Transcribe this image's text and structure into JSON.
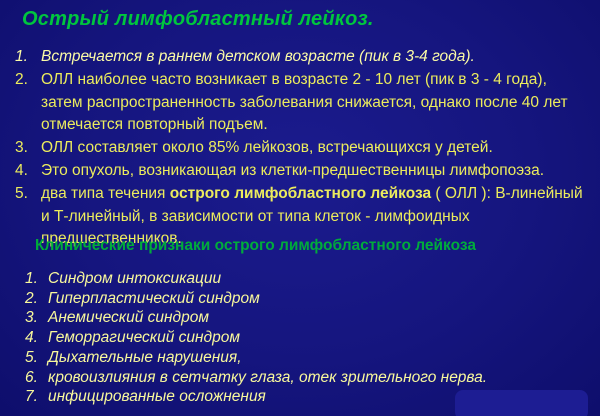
{
  "slide": {
    "title": "Острый лимфобластный лейкоз.",
    "facts": [
      {
        "num": "1.",
        "text": "Встречается в раннем детском возрасте (пик в 3-4 года)."
      },
      {
        "num": "2.",
        "text": "ОЛЛ наиболее часто возникает в возрасте 2 - 10 лет (пик в 3 - 4 года), затем распространенность заболевания снижается, однако после 40 лет отмечается повторный подъем."
      },
      {
        "num": "3.",
        "text": "ОЛЛ составляет около 85% лейкозов, встречающихся у детей."
      },
      {
        "num": "4.",
        "text": "Это опухоль, возникающая из клетки-предшественницы лимфопоэза."
      },
      {
        "num": "5.",
        "pre": "два типа течения ",
        "bold": "острого лимфобластного лейкоза",
        "post": " ( ОЛЛ ): В-линейный и Т-линейный, в зависимости от типа клеток - лимфоидных предшественников."
      }
    ],
    "subtitle": "Клинические признаки острого лимфобластного лейкоза",
    "signs": [
      {
        "num": "1.",
        "text": "Синдром интоксикации"
      },
      {
        "num": "2.",
        "text": "Гиперпластический синдром"
      },
      {
        "num": "3.",
        "text": "Анемический синдром"
      },
      {
        "num": "4.",
        "text": "Геморрагический синдром"
      },
      {
        "num": "5.",
        "text": "Дыхательные нарушения,"
      },
      {
        "num": "6.",
        "text": "кровоизлияния в сетчатку глаза, отек зрительного нерва."
      },
      {
        "num": "7.",
        "text": "инфицированные осложнения"
      }
    ],
    "colors": {
      "background": "#15157e",
      "title_green": "#00c63e",
      "subtitle_green": "#00ac3b",
      "fact_yellow": "#ecec5d",
      "pale_yellow": "#fbfba6"
    }
  }
}
